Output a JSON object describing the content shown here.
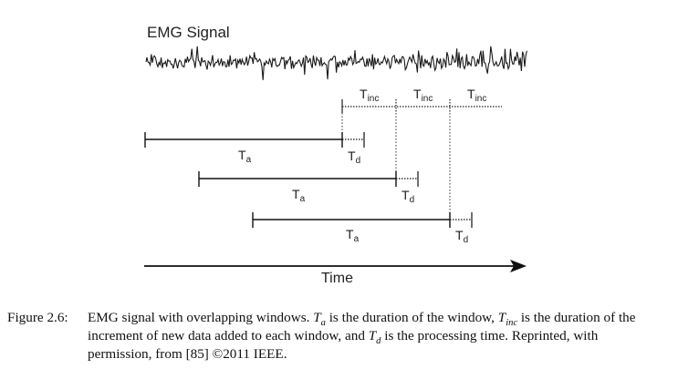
{
  "diagram": {
    "signal_label": "EMG Signal",
    "time_label": "Time",
    "window_label": "T",
    "window_label_sub": "a",
    "processing_label": "T",
    "processing_label_sub": "d",
    "increment_label": "T",
    "increment_label_sub": "inc"
  },
  "caption": {
    "number": "Figure 2.6:",
    "t1": "EMG signal with overlapping windows. ",
    "ta": "T",
    "ta_sub": "a",
    "t2": " is the duration of the window, ",
    "tinc": "T",
    "tinc_sub": "inc",
    "t3": " is the duration of the increment of new data added to each window, and ",
    "td": "T",
    "td_sub": "d",
    "t4": " is the processing time. Reprinted, with permission, from [85] ©2011 IEEE."
  },
  "colors": {
    "ink": "#111111",
    "signal": "#1a1a1a"
  }
}
